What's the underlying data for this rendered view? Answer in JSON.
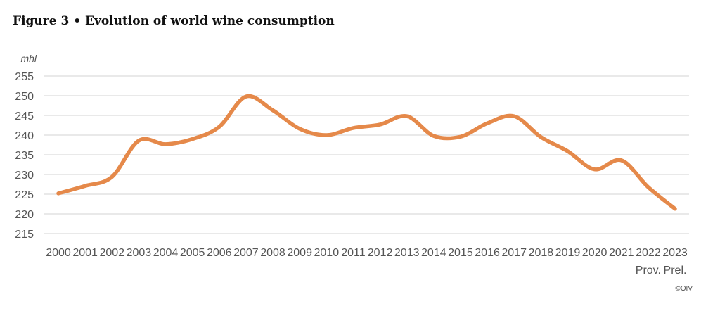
{
  "title": "Figure 3 • Evolution of world wine consumption",
  "copyright": "©OIV",
  "chart_data": {
    "type": "line",
    "title": "Figure 3 • Evolution of world wine consumption",
    "ylabel": "mhl",
    "xlabel": "",
    "ylim": [
      215,
      255
    ],
    "yticks": [
      215,
      220,
      225,
      230,
      235,
      240,
      245,
      250,
      255
    ],
    "grid": true,
    "line_color": "#E5894A",
    "categories": [
      "2000",
      "2001",
      "2002",
      "2003",
      "2004",
      "2005",
      "2006",
      "2007",
      "2008",
      "2009",
      "2010",
      "2011",
      "2012",
      "2013",
      "2014",
      "2015",
      "2016",
      "2017",
      "2018",
      "2019",
      "2020",
      "2021",
      "2022",
      "2023"
    ],
    "category_sublabels": {
      "2022": "Prov.",
      "2023": "Prel."
    },
    "values": [
      225.2,
      227.1,
      229.4,
      238.6,
      237.7,
      239.0,
      242.1,
      249.8,
      246.3,
      241.6,
      240.0,
      241.8,
      242.7,
      244.8,
      239.8,
      239.6,
      243.0,
      244.8,
      239.5,
      235.9,
      231.3,
      233.6,
      226.8,
      221.3
    ]
  }
}
